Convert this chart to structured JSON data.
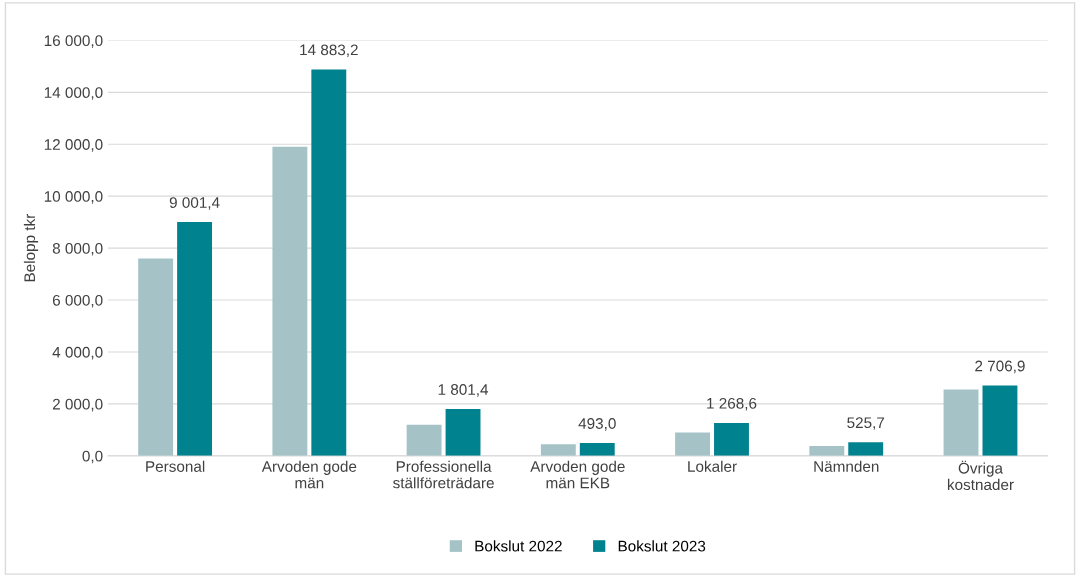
{
  "chart_data": {
    "type": "bar",
    "ylabel": "Belopp tkr",
    "categories": [
      "Personal",
      "Arvoden gode\nmän",
      "Professionella\nställföreträdare",
      "Arvoden gode\nmän EKB",
      "Lokaler",
      "Nämnden",
      "Övriga\nkostnader"
    ],
    "series": [
      {
        "name": "Bokslut 2022",
        "color": "#a5c3c7",
        "values": [
          7600,
          11900,
          1200,
          450,
          900,
          380,
          2550
        ]
      },
      {
        "name": "Bokslut 2023",
        "color": "#00828f",
        "values": [
          9001.4,
          14883.2,
          1801.4,
          493.0,
          1268.6,
          525.7,
          2706.9
        ],
        "value_labels": [
          "9 001,4",
          "14 883,2",
          "1 801,4",
          "493,0",
          "1 268,6",
          "525,7",
          "2 706,9"
        ]
      }
    ],
    "ylim": [
      0,
      16000
    ],
    "yticks": [
      {
        "value": 0,
        "label": "0,0"
      },
      {
        "value": 2000,
        "label": "2 000,0"
      },
      {
        "value": 4000,
        "label": "4 000,0"
      },
      {
        "value": 6000,
        "label": "6 000,0"
      },
      {
        "value": 8000,
        "label": "8 000,0"
      },
      {
        "value": 10000,
        "label": "10 000,0"
      },
      {
        "value": 12000,
        "label": "12 000,0"
      },
      {
        "value": 14000,
        "label": "14 000,0"
      },
      {
        "value": 16000,
        "label": "16 000,0"
      }
    ],
    "grid": "y",
    "legend": "bottom"
  }
}
